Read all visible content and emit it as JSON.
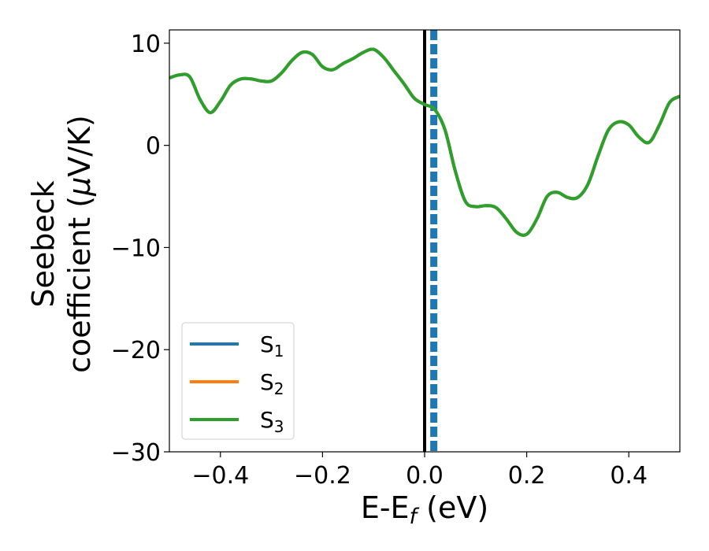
{
  "chart_data": {
    "type": "line",
    "title": "",
    "xlabel": {
      "base": "E-E",
      "sub": "f",
      "suffix": " (eV)"
    },
    "ylabel": {
      "line1": "Seebeck",
      "line2": "coefficient  (",
      "mu": "μ",
      "unit": "V/K)"
    },
    "xlim": [
      -0.5,
      0.5
    ],
    "ylim": [
      -30,
      11.3
    ],
    "xticks": [
      -0.4,
      -0.2,
      0.0,
      0.2,
      0.4
    ],
    "xtick_labels": [
      "−0.4",
      "−0.2",
      "0.0",
      "0.2",
      "0.4"
    ],
    "yticks": [
      10,
      0,
      -10,
      -20,
      -30
    ],
    "ytick_labels": [
      "10",
      "0",
      "−10",
      "−20",
      "−30"
    ],
    "grid": false,
    "legend_position": "lower-left",
    "vlines": [
      {
        "x": 0.0,
        "color": "#000000",
        "style": "solid"
      },
      {
        "x": 0.018,
        "color": "#1f77b4",
        "style": "dashed"
      }
    ],
    "x": [
      -0.5,
      -0.48,
      -0.46,
      -0.44,
      -0.42,
      -0.4,
      -0.38,
      -0.36,
      -0.34,
      -0.32,
      -0.3,
      -0.28,
      -0.26,
      -0.24,
      -0.22,
      -0.2,
      -0.18,
      -0.16,
      -0.14,
      -0.12,
      -0.1,
      -0.08,
      -0.06,
      -0.04,
      -0.02,
      0.0,
      0.02,
      0.04,
      0.06,
      0.08,
      0.1,
      0.12,
      0.14,
      0.16,
      0.18,
      0.2,
      0.22,
      0.24,
      0.26,
      0.28,
      0.3,
      0.32,
      0.34,
      0.36,
      0.38,
      0.4,
      0.42,
      0.44,
      0.46,
      0.48,
      0.5
    ],
    "series": [
      {
        "name": "S",
        "sub": "1",
        "color": "#1f77b4",
        "values": [
          6.6,
          6.9,
          6.7,
          4.5,
          3.2,
          4.3,
          5.9,
          6.5,
          6.5,
          6.3,
          6.3,
          7.1,
          8.3,
          9.1,
          8.9,
          7.7,
          7.4,
          8.0,
          8.5,
          9.1,
          9.4,
          8.6,
          7.3,
          6.0,
          4.6,
          4.0,
          3.5,
          1.5,
          -2.5,
          -5.5,
          -6.0,
          -5.9,
          -6.1,
          -7.2,
          -8.5,
          -8.7,
          -7.2,
          -5.0,
          -4.6,
          -5.1,
          -5.1,
          -3.8,
          -1.0,
          1.5,
          2.3,
          2.0,
          0.8,
          0.3,
          2.0,
          4.2,
          4.8
        ]
      },
      {
        "name": "S",
        "sub": "2",
        "color": "#ff7f0e",
        "values": [
          6.6,
          6.9,
          6.7,
          4.5,
          3.2,
          4.3,
          5.9,
          6.5,
          6.5,
          6.3,
          6.3,
          7.1,
          8.3,
          9.1,
          8.9,
          7.7,
          7.4,
          8.0,
          8.5,
          9.1,
          9.4,
          8.6,
          7.3,
          6.0,
          4.6,
          4.0,
          3.5,
          1.5,
          -2.5,
          -5.5,
          -6.0,
          -5.9,
          -6.1,
          -7.2,
          -8.5,
          -8.7,
          -7.2,
          -5.0,
          -4.6,
          -5.1,
          -5.1,
          -3.8,
          -1.0,
          1.5,
          2.3,
          2.0,
          0.8,
          0.3,
          2.0,
          4.2,
          4.8
        ]
      },
      {
        "name": "S",
        "sub": "3",
        "color": "#2ca02c",
        "values": [
          6.6,
          6.9,
          6.7,
          4.5,
          3.2,
          4.3,
          5.9,
          6.5,
          6.5,
          6.3,
          6.3,
          7.1,
          8.3,
          9.1,
          8.9,
          7.7,
          7.4,
          8.0,
          8.5,
          9.1,
          9.4,
          8.6,
          7.3,
          6.0,
          4.6,
          4.0,
          3.5,
          1.5,
          -2.5,
          -5.5,
          -6.0,
          -5.9,
          -6.1,
          -7.2,
          -8.5,
          -8.7,
          -7.2,
          -5.0,
          -4.6,
          -5.1,
          -5.1,
          -3.8,
          -1.0,
          1.5,
          2.3,
          2.0,
          0.8,
          0.3,
          2.0,
          4.2,
          4.8
        ]
      }
    ]
  }
}
